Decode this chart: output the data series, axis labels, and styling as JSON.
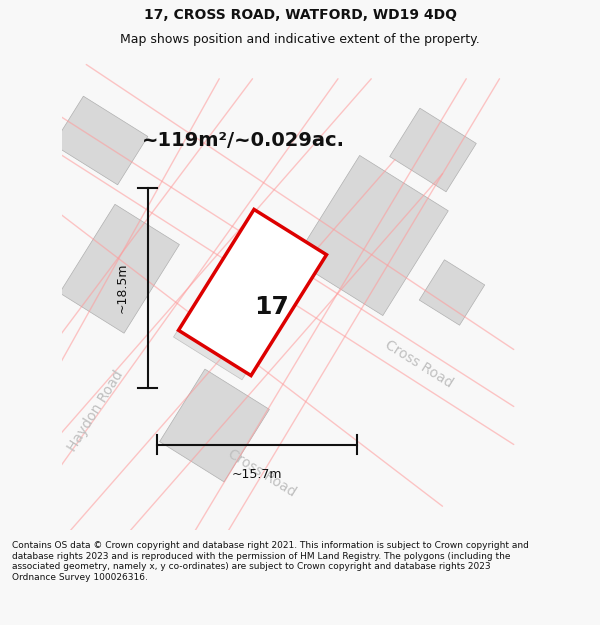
{
  "title_line1": "17, CROSS ROAD, WATFORD, WD19 4DQ",
  "title_line2": "Map shows position and indicative extent of the property.",
  "area_text": "~119m²/~0.029ac.",
  "label_17": "17",
  "dim_height": "~18.5m",
  "dim_width": "~15.7m",
  "road_label1": "Cross Road",
  "road_label2": "Cross Road",
  "road_label3": "Haydon Road",
  "footer_text": "Contains OS data © Crown copyright and database right 2021. This information is subject to Crown copyright and database rights 2023 and is reproduced with the permission of HM Land Registry. The polygons (including the associated geometry, namely x, y co-ordinates) are subject to Crown copyright and database rights 2023 Ordnance Survey 100026316.",
  "bg_color": "#f0f0f0",
  "map_bg": "#f0f0f0",
  "block_color": "#d8d8d8",
  "block_edge": "#b0b0b0",
  "red_outline": "#dd0000",
  "pink_line": "#ffaaaa",
  "road_text_color": "#b0b0b0",
  "title_color": "#111111",
  "footer_color": "#111111",
  "dim_color": "#111111"
}
